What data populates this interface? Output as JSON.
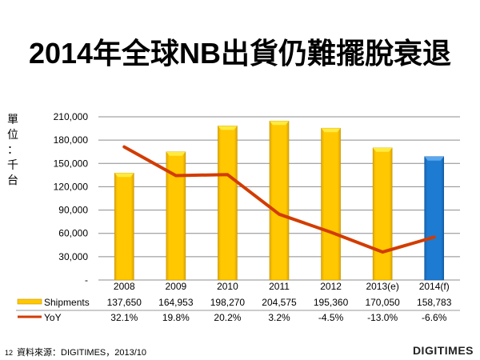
{
  "title": "2014年全球NB出貨仍難擺脫衰退",
  "unit_label": [
    "單",
    "位",
    "：",
    "千",
    "台"
  ],
  "footer": {
    "page_number": "12",
    "source": "資料來源：DIGITIMES，2013/10",
    "logo": "DIGITIMES"
  },
  "colors": {
    "bar": "#FFC800",
    "bar_highlight": "#1E7BD2",
    "line": "#D23C00",
    "grid": "#8C8C8C"
  },
  "chart_data": {
    "type": "bar",
    "title": "2014年全球NB出貨仍難擺脫衰退",
    "ylabel": "單位：千台",
    "xlabel": "",
    "categories": [
      "2008",
      "2009",
      "2010",
      "2011",
      "2012",
      "2013(e)",
      "2014(f)"
    ],
    "ylim": [
      0,
      210000
    ],
    "yticks": [
      0,
      30000,
      60000,
      90000,
      120000,
      150000,
      180000,
      210000
    ],
    "ytick_labels": [
      "-",
      "30,000",
      "60,000",
      "90,000",
      "120,000",
      "150,000",
      "180,000",
      "210,000"
    ],
    "grid": true,
    "series": [
      {
        "name": "Shipments",
        "type": "bar",
        "values": [
          137650,
          164953,
          198270,
          204575,
          195360,
          170050,
          158783
        ],
        "labels": [
          "137,650",
          "164,953",
          "198,270",
          "204,575",
          "195,360",
          "170,050",
          "158,783"
        ],
        "highlight_index": 6
      },
      {
        "name": "YoY",
        "type": "line",
        "unit": "%",
        "values": [
          32.1,
          19.8,
          20.2,
          3.2,
          -4.5,
          -13.0,
          -6.6
        ],
        "labels": [
          "32.1%",
          "19.8%",
          "20.2%",
          "3.2%",
          "-4.5%",
          "-13.0%",
          "-6.6%"
        ],
        "secondary_axis_hidden": true,
        "secondary_range": [
          -25,
          45
        ]
      }
    ],
    "legend": "data-table-bottom"
  }
}
